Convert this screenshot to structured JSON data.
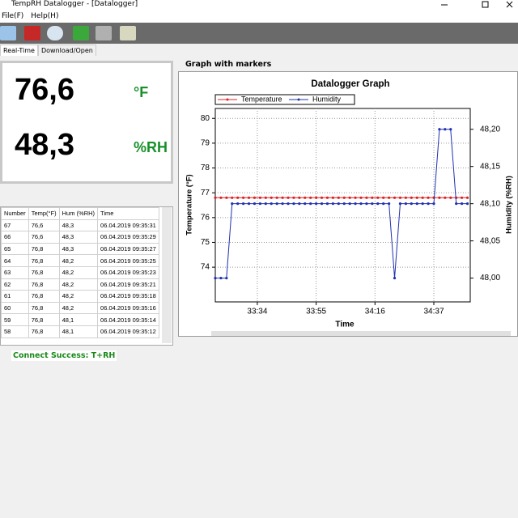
{
  "window": {
    "title": "TempRH Datalogger - [Datalogger]"
  },
  "menu": [
    "File(F)",
    "Help(H)"
  ],
  "tabs": [
    "Real-Time",
    "Download/Open"
  ],
  "readings": {
    "temperature": "76,6",
    "temperature_unit": "°F",
    "humidity": "48,3",
    "humidity_unit": "%RH"
  },
  "table": {
    "columns": [
      "Number",
      "Temp(°F)",
      "Hum (%RH)",
      "Time"
    ],
    "rows": [
      [
        "67",
        "76,6",
        "48,3",
        "06.04.2019 09:35:31"
      ],
      [
        "66",
        "76,6",
        "48,3",
        "06.04.2019 09:35:29"
      ],
      [
        "65",
        "76,8",
        "48,3",
        "06.04.2019 09:35:27"
      ],
      [
        "64",
        "76,8",
        "48,2",
        "06.04.2019 09:35:25"
      ],
      [
        "63",
        "76,8",
        "48,2",
        "06.04.2019 09:35:23"
      ],
      [
        "62",
        "76,8",
        "48,2",
        "06.04.2019 09:35:21"
      ],
      [
        "61",
        "76,8",
        "48,2",
        "06.04.2019 09:35:18"
      ],
      [
        "60",
        "76,8",
        "48,2",
        "06.04.2019 09:35:16"
      ],
      [
        "59",
        "76,8",
        "48,1",
        "06.04.2019 09:35:14"
      ],
      [
        "58",
        "76,8",
        "48,1",
        "06.04.2019 09:35:12"
      ]
    ]
  },
  "status": "Connect Success: T+RH",
  "panel_title": "Graph with markers",
  "chart_data": {
    "type": "line",
    "title": "Datalogger Graph",
    "x_label": "Time",
    "y_label": "Temperature (°F)",
    "y2_label": "Humidity (%RH)",
    "x": [
      1999,
      2001,
      2003,
      2005,
      2007,
      2009,
      2011,
      2013,
      2015,
      2017,
      2019,
      2021,
      2023,
      2025,
      2027,
      2029,
      2031,
      2033,
      2035,
      2037,
      2039,
      2041,
      2043,
      2045,
      2047,
      2049,
      2051,
      2053,
      2055,
      2057,
      2059,
      2061,
      2063,
      2065,
      2067,
      2069,
      2071,
      2073,
      2075,
      2077,
      2079,
      2081,
      2083,
      2085,
      2087,
      2089
    ],
    "xlim": [
      1999,
      2090
    ],
    "xticks": [
      {
        "value": 2014,
        "label": "33:34"
      },
      {
        "value": 2035,
        "label": "33:55"
      },
      {
        "value": 2056,
        "label": "34:16"
      },
      {
        "value": 2077,
        "label": "34:37"
      }
    ],
    "ylim": [
      72.6,
      80.4
    ],
    "yticks": [
      74,
      75,
      76,
      77,
      78,
      79,
      80
    ],
    "y2lim": [
      47.968,
      48.228
    ],
    "y2ticks": [
      {
        "value": 48.0,
        "label": "48,00"
      },
      {
        "value": 48.05,
        "label": "48,05"
      },
      {
        "value": 48.1,
        "label": "48,10"
      },
      {
        "value": 48.15,
        "label": "48,15"
      },
      {
        "value": 48.2,
        "label": "48,20"
      }
    ],
    "grid": true,
    "markers": true,
    "series": [
      {
        "name": "Temperature",
        "color": "#e02020",
        "values": [
          76.8,
          76.8,
          76.8,
          76.8,
          76.8,
          76.8,
          76.8,
          76.8,
          76.8,
          76.8,
          76.8,
          76.8,
          76.8,
          76.8,
          76.8,
          76.8,
          76.8,
          76.8,
          76.8,
          76.8,
          76.8,
          76.8,
          76.8,
          76.8,
          76.8,
          76.8,
          76.8,
          76.8,
          76.8,
          76.8,
          76.8,
          76.8,
          76.8,
          76.8,
          76.8,
          76.8,
          76.8,
          76.8,
          76.8,
          76.8,
          76.8,
          76.8,
          76.8,
          76.8,
          76.8,
          76.8
        ]
      },
      {
        "name": "Humidity",
        "color": "#2030b0",
        "axis": "y2",
        "values": [
          48.0,
          48.0,
          48.0,
          48.1,
          48.1,
          48.1,
          48.1,
          48.1,
          48.1,
          48.1,
          48.1,
          48.1,
          48.1,
          48.1,
          48.1,
          48.1,
          48.1,
          48.1,
          48.1,
          48.1,
          48.1,
          48.1,
          48.1,
          48.1,
          48.1,
          48.1,
          48.1,
          48.1,
          48.1,
          48.1,
          48.1,
          48.1,
          48.0,
          48.1,
          48.1,
          48.1,
          48.1,
          48.1,
          48.1,
          48.1,
          48.2,
          48.2,
          48.2,
          48.1,
          48.1,
          48.1
        ]
      }
    ]
  }
}
